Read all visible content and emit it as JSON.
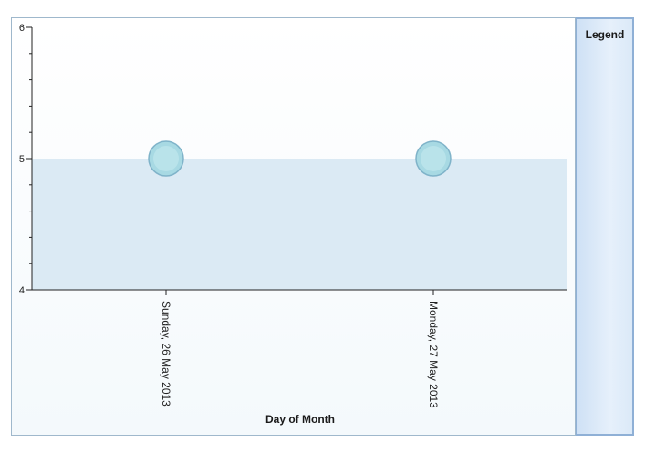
{
  "legend": {
    "title": "Legend"
  },
  "colors": {
    "area_fill": "#dbeaf4",
    "point_fill": "#a7d9e3",
    "point_stroke": "#7fb3c9",
    "axis": "#222222"
  },
  "chart_data": {
    "type": "area",
    "categories": [
      "Sunday, 26 May 2013",
      "Monday, 27 May 2013"
    ],
    "series": [
      {
        "values": [
          5,
          5
        ]
      }
    ],
    "xlabel": "Day of Month",
    "ylabel": "",
    "ylim": [
      4,
      6
    ],
    "yticks": [
      "4",
      "5",
      "6"
    ],
    "grid": false,
    "legend_position": "right"
  }
}
